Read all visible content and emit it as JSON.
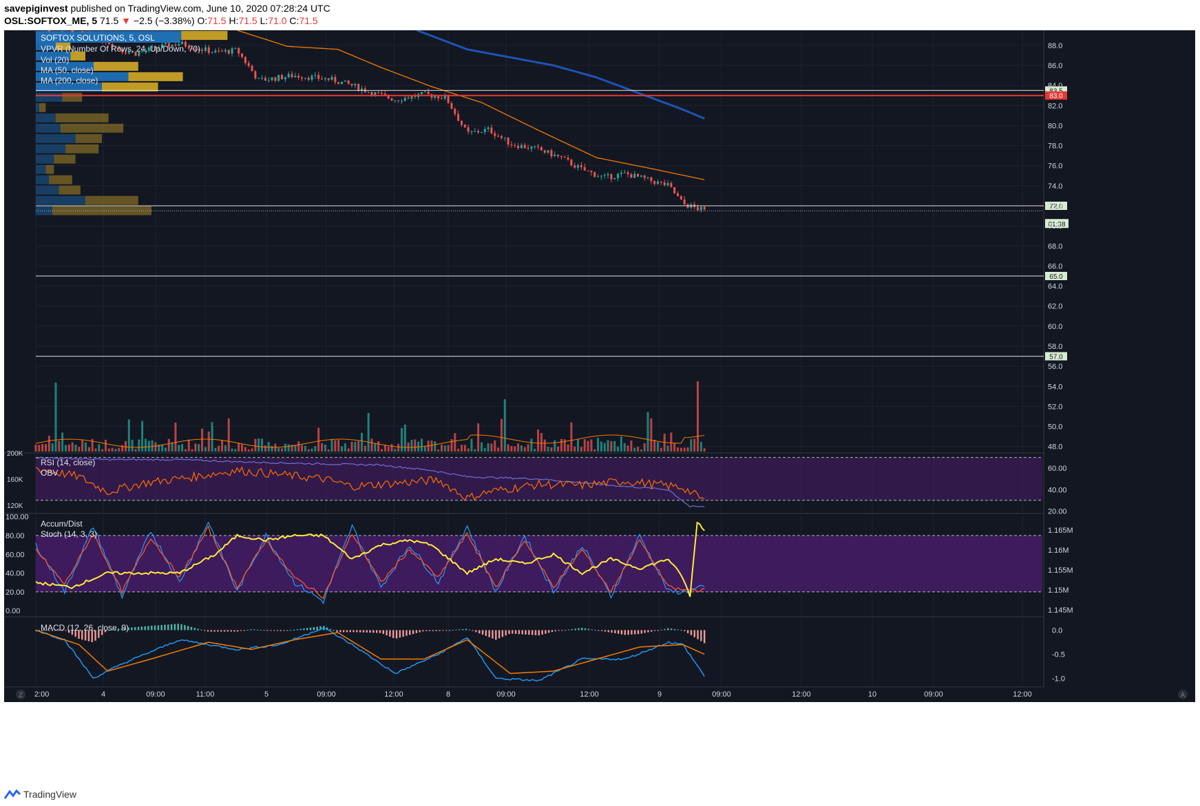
{
  "header": {
    "publisher": "savepiginvest",
    "published_text": "published on TradingView.com, June 10, 2020 07:28:24 UTC",
    "symbol": "OSL:SOFTOX_ME, 5",
    "last": "71.5",
    "change": "−2.5 (−3.38%)",
    "o_label": "O:",
    "o": "71.5",
    "h_label": "H:",
    "h": "71.5",
    "l_label": "L:",
    "l": "71.0",
    "c_label": "C:",
    "c": "71.5"
  },
  "legend": {
    "title": "SOFTOX SOLUTIONS, 5, OSL",
    "vpvr": "VPVR (Number Of Rows, 24, Up/Down, 70)",
    "vol": "Vol (20)",
    "ma50": "MA (50, close)",
    "ma200": "MA (200, close)"
  },
  "panes": {
    "rsi_label": "RSI (14, close)",
    "obv_label": "OBV",
    "ad_label": "Accum/Dist",
    "stoch_label": "Stoch (14, 3, 3)",
    "macd_label": "MACD (12, 26, close, 9)"
  },
  "time_axis": [
    "2:00",
    "4",
    "09:00",
    "11:00",
    "5",
    "09:00",
    "12:00",
    "8",
    "09:00",
    "12:00",
    "9",
    "09:00",
    "12:00",
    "10",
    "09:00",
    "12:00"
  ],
  "footer": {
    "brand": "TradingView"
  },
  "colors": {
    "background": "#131722",
    "up": "#26a69a",
    "down": "#ef5350",
    "ma50": "#f57c00",
    "ma200": "#1e53b5",
    "rsi": "#ff6d00",
    "obv": "#6f6fd6",
    "stoch_k": "#2196f3",
    "stoch_d": "#ff5722",
    "ad": "#ffeb3b",
    "vpvr_up": "#1f6fb5",
    "vpvr_down": "#c9a227",
    "pane_fill": "#4a1d6b"
  },
  "chart_data": [
    {
      "type": "candlestick",
      "title": "SOFTOX SOLUTIONS, 5, OSL",
      "price_axis_ticks": [
        88.0,
        86.0,
        84.0,
        82.0,
        80.0,
        78.0,
        76.0,
        74.0,
        72.0,
        70.0,
        68.0,
        66.0,
        64.0,
        62.0,
        60.0,
        58.0,
        56.0,
        54.0,
        52.0,
        50.0,
        48.0
      ],
      "price_axis_labels": [
        "88.0",
        "86.0",
        "84.0",
        "82.0",
        "80.0",
        "78.0",
        "76.0",
        "74.0",
        "72.0",
        "70.0",
        "68.0",
        "66.0",
        "64.0",
        "62.0",
        "60.0",
        "58.0",
        "56.0",
        "54.0",
        "52.0",
        "50.0",
        "48.0"
      ],
      "ylim": [
        47.5,
        89.5
      ],
      "path_time": [
        0,
        3,
        6,
        9,
        12,
        14,
        17,
        20,
        22,
        25,
        28,
        31,
        36,
        41,
        44,
        47,
        50,
        54,
        57,
        60,
        63,
        66,
        70,
        73,
        76,
        79,
        82,
        85,
        88,
        90,
        93
      ],
      "path_price": [
        89.8,
        89.5,
        89.2,
        88.8,
        87.5,
        87.2,
        87.8,
        88.2,
        87.8,
        87.3,
        87.5,
        84.5,
        85.0,
        84.6,
        84.0,
        83.2,
        82.6,
        83.1,
        82.8,
        79.2,
        79.6,
        78.2,
        77.6,
        76.8,
        75.6,
        74.8,
        75.2,
        74.6,
        74.0,
        72.2,
        71.5
      ],
      "ma50": {
        "name": "MA (50, close)",
        "time": [
          28,
          35,
          42,
          48,
          55,
          62,
          70,
          78,
          85,
          93
        ],
        "values": [
          89.5,
          87.9,
          87.6,
          85.8,
          83.9,
          82.3,
          79.5,
          76.8,
          75.8,
          74.6
        ]
      },
      "ma200": {
        "name": "MA (200, close)",
        "time": [
          53,
          60,
          66,
          72,
          78,
          84,
          90,
          93
        ],
        "values": [
          89.5,
          87.6,
          86.8,
          86.0,
          84.8,
          83.2,
          81.6,
          80.7
        ]
      },
      "horizontal_levels": [
        {
          "price": 83.5,
          "label": "83.5",
          "color": "#e0e0e0"
        },
        {
          "price": 83.0,
          "label": "83.0",
          "color": "#e53935"
        },
        {
          "price": 72.0,
          "label": "72.0",
          "color": "#e0e0e0"
        },
        {
          "price": 65.0,
          "label": "65.0",
          "color": "#e0e0e0"
        },
        {
          "price": 57.0,
          "label": "57.0",
          "color": "#e0e0e0"
        }
      ],
      "last_price_label": "71.5",
      "countdown_label": "01:38",
      "vpvr_rows": [
        {
          "up": 0.88,
          "down": 0.28
        },
        {
          "up": 0.12,
          "down": 0.09
        },
        {
          "up": 0.21,
          "down": 0.09
        },
        {
          "up": 0.35,
          "down": 0.27
        },
        {
          "up": 0.56,
          "down": 0.33
        },
        {
          "up": 0.4,
          "down": 0.34
        },
        {
          "up": 0.16,
          "down": 0.12
        },
        {
          "up": 0.02,
          "down": 0.04
        },
        {
          "up": 0.12,
          "down": 0.32
        },
        {
          "up": 0.15,
          "down": 0.38
        },
        {
          "up": 0.24,
          "down": 0.16
        },
        {
          "up": 0.18,
          "down": 0.2
        },
        {
          "up": 0.11,
          "down": 0.13
        },
        {
          "up": 0.06,
          "down": 0.05
        },
        {
          "up": 0.08,
          "down": 0.14
        },
        {
          "up": 0.14,
          "down": 0.13
        },
        {
          "up": 0.3,
          "down": 0.32
        },
        {
          "up": 0.1,
          "down": 0.6
        }
      ],
      "volume_axis_labels": [
        "200K",
        "160K",
        "120K"
      ]
    },
    {
      "type": "line",
      "title": "RSI (14, close)",
      "axis_labels": [
        "60.00",
        "40.00",
        "20.00"
      ],
      "ylim": [
        19,
        73
      ],
      "bands": [
        70,
        30
      ],
      "series": [
        {
          "name": "RSI (14, close)",
          "time": [
            0,
            6,
            10,
            15,
            22,
            28,
            34,
            40,
            44,
            50,
            56,
            60,
            63,
            70,
            76,
            82,
            90,
            93
          ],
          "values": [
            60,
            52,
            38,
            46,
            52,
            58,
            54,
            50,
            43,
            46,
            49,
            32,
            38,
            45,
            44,
            48,
            42,
            30
          ]
        },
        {
          "name": "OBV",
          "time": [
            0,
            10,
            20,
            28,
            40,
            48,
            55,
            60,
            70,
            80,
            88,
            91,
            93
          ],
          "values": [
            70,
            68,
            68,
            66,
            64,
            63,
            58,
            52,
            50,
            44,
            40,
            24,
            24
          ]
        }
      ]
    },
    {
      "type": "line",
      "title": "Stoch (14, 3, 3)",
      "axis_labels": [
        "100.00",
        "80.00",
        "60.00",
        "40.00",
        "20.00",
        "0.00"
      ],
      "right_axis_labels": [
        "1.165M",
        "1.16M",
        "1.155M",
        "1.15M",
        "1.145M"
      ],
      "ylim": [
        -5,
        102
      ],
      "bands": [
        80,
        20
      ],
      "series": [
        {
          "name": "Stoch K",
          "time": [
            0,
            4,
            8,
            12,
            16,
            20,
            24,
            28,
            32,
            36,
            40,
            44,
            48,
            52,
            56,
            60,
            64,
            68,
            72,
            76,
            80,
            84,
            88,
            90,
            93
          ],
          "values": [
            70,
            20,
            90,
            15,
            85,
            30,
            95,
            20,
            80,
            30,
            10,
            90,
            25,
            70,
            30,
            90,
            20,
            80,
            20,
            70,
            15,
            80,
            20,
            20,
            25
          ]
        },
        {
          "name": "Stoch D",
          "time": [
            0,
            4,
            8,
            12,
            16,
            20,
            24,
            28,
            32,
            36,
            40,
            44,
            48,
            52,
            56,
            60,
            64,
            68,
            72,
            76,
            80,
            84,
            88,
            90,
            93
          ],
          "values": [
            65,
            28,
            82,
            20,
            78,
            35,
            88,
            25,
            75,
            35,
            15,
            82,
            30,
            65,
            35,
            82,
            25,
            75,
            25,
            65,
            20,
            75,
            25,
            22,
            22
          ]
        },
        {
          "name": "Accum/Dist",
          "time": [
            0,
            5,
            10,
            15,
            20,
            25,
            28,
            32,
            36,
            40,
            44,
            48,
            52,
            55,
            60,
            64,
            68,
            72,
            76,
            80,
            84,
            88,
            90,
            91,
            92,
            93
          ],
          "values": [
            30,
            25,
            40,
            40,
            40,
            60,
            80,
            75,
            80,
            80,
            55,
            70,
            75,
            70,
            40,
            55,
            50,
            60,
            40,
            55,
            45,
            55,
            35,
            15,
            95,
            85
          ]
        }
      ]
    },
    {
      "type": "line",
      "title": "MACD (12, 26, close, 9)",
      "axis_labels": [
        "0.0",
        "-0.5",
        "-1.0"
      ],
      "ylim": [
        -1.15,
        0.25
      ],
      "series": [
        {
          "name": "MACD",
          "time": [
            0,
            4,
            8,
            12,
            20,
            28,
            34,
            40,
            44,
            50,
            56,
            60,
            64,
            70,
            76,
            82,
            88,
            90,
            93
          ],
          "values": [
            0.0,
            -0.2,
            -1.0,
            -0.7,
            -0.2,
            -0.4,
            -0.3,
            0.05,
            -0.3,
            -0.9,
            -0.5,
            -0.15,
            -1.0,
            -1.05,
            -0.6,
            -0.6,
            -0.25,
            -0.3,
            -0.95
          ]
        },
        {
          "name": "Signal",
          "time": [
            0,
            6,
            10,
            16,
            24,
            30,
            36,
            42,
            48,
            54,
            60,
            66,
            72,
            78,
            84,
            90,
            93
          ],
          "values": [
            0.0,
            -0.3,
            -0.85,
            -0.6,
            -0.25,
            -0.4,
            -0.2,
            -0.05,
            -0.6,
            -0.6,
            -0.2,
            -0.9,
            -0.85,
            -0.6,
            -0.35,
            -0.3,
            -0.5
          ]
        }
      ]
    }
  ]
}
